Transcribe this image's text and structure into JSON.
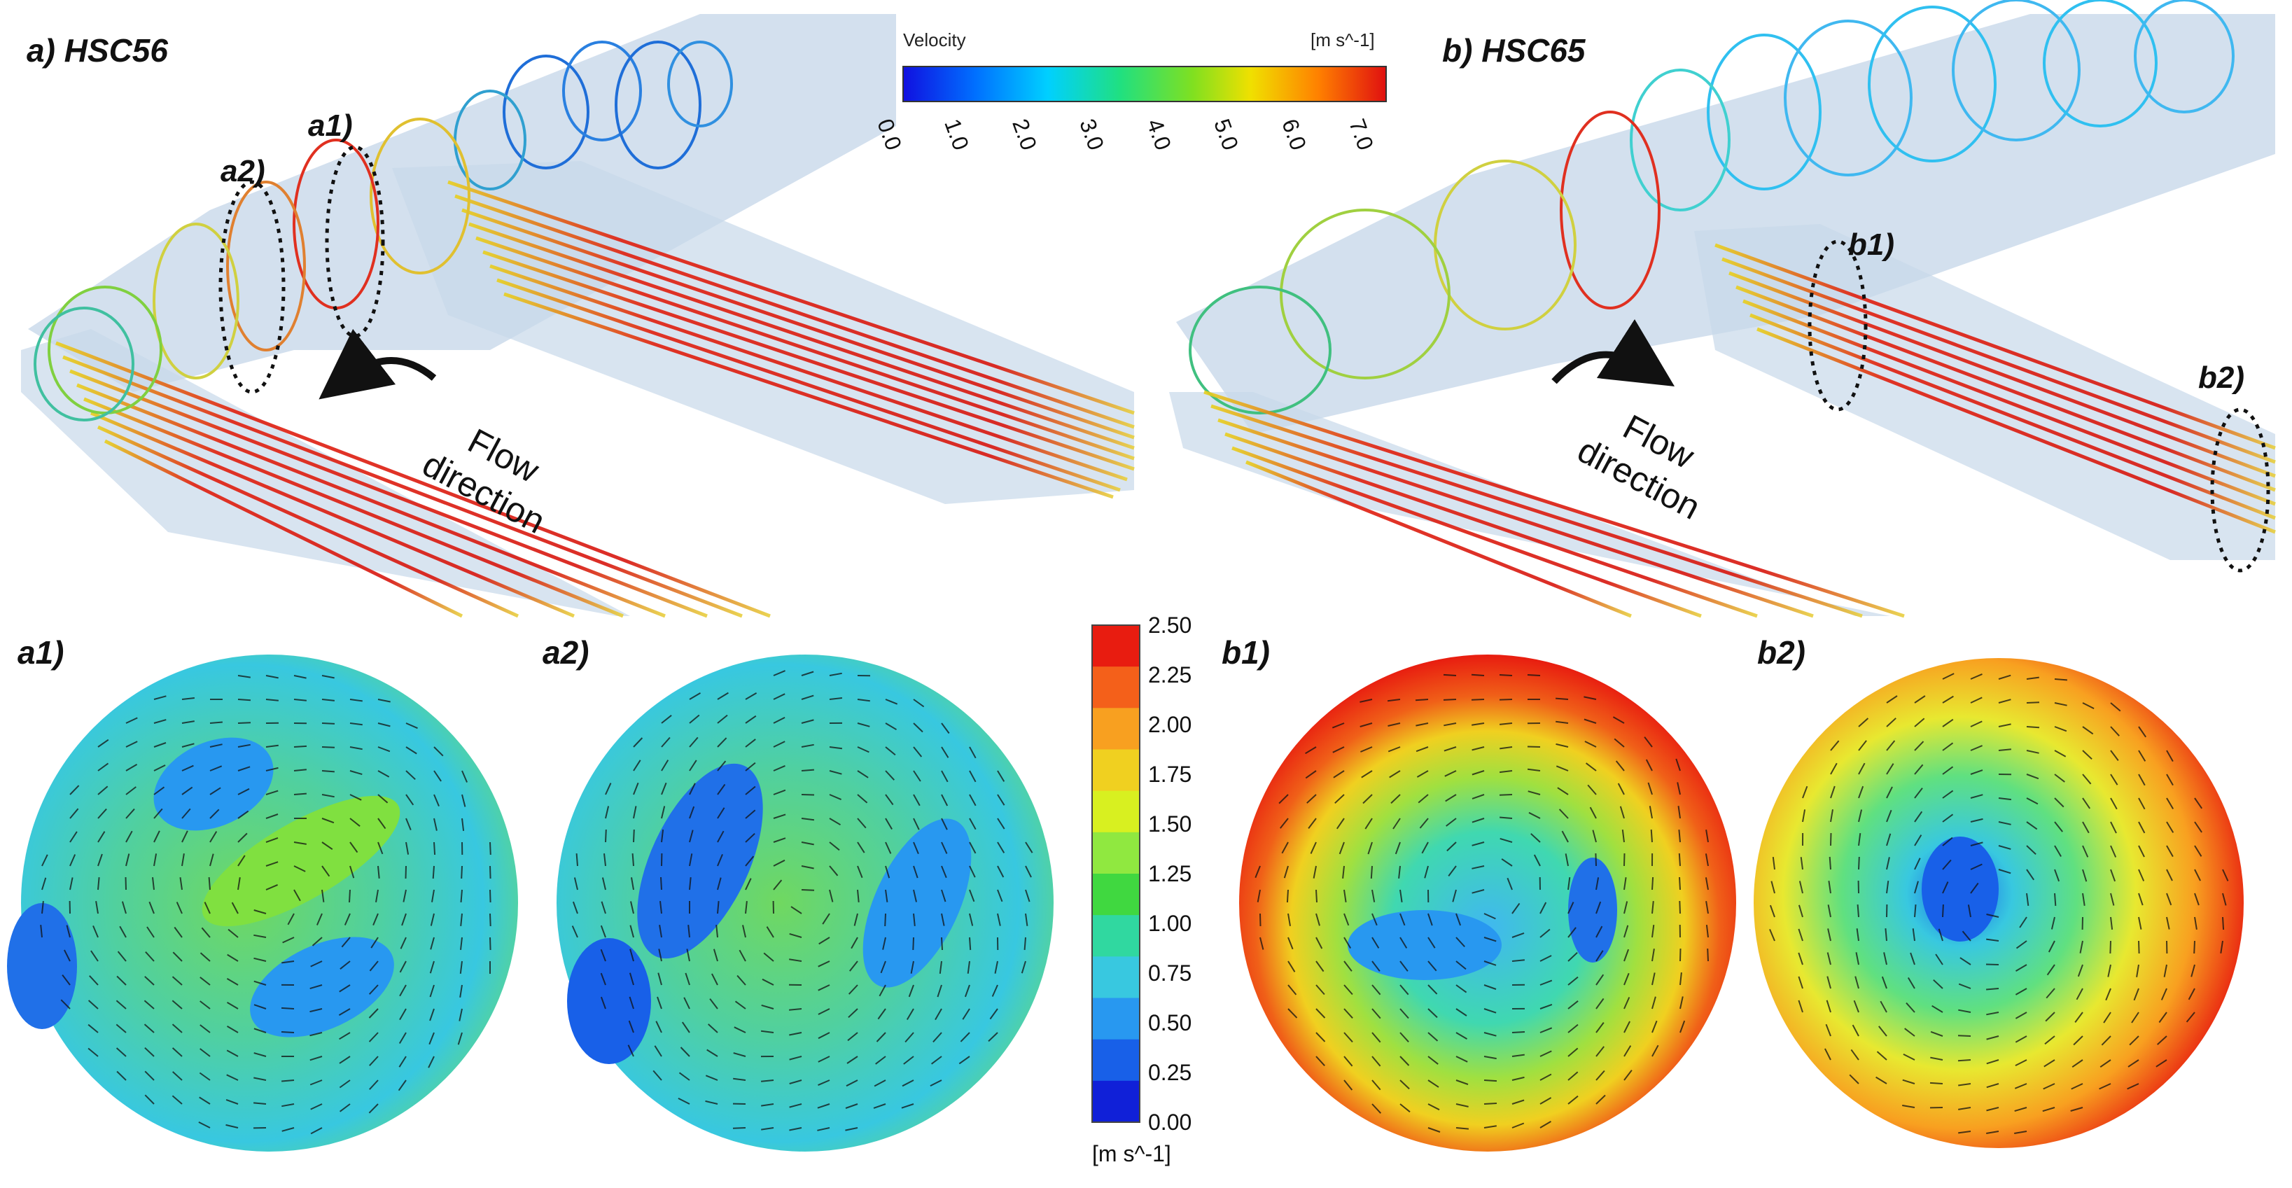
{
  "figure": {
    "panel_a_title": "a) HSC56",
    "panel_b_title": "b) HSC65",
    "flow_direction_line1": "Flow",
    "flow_direction_line2": "direction",
    "annotations": [
      "a1)",
      "a2)",
      "b1)",
      "b2)"
    ]
  },
  "velocity_colorbar": {
    "title": "Velocity",
    "unit": "[m s^-1]",
    "ticks": [
      "0.0",
      "1.0",
      "2.0",
      "3.0",
      "4.0",
      "5.0",
      "6.0",
      "7.0"
    ],
    "range": [
      0,
      7
    ],
    "colors": [
      "#1010e0",
      "#00a0ff",
      "#00e0c0",
      "#40e040",
      "#e0e000",
      "#ff9000",
      "#e01010"
    ]
  },
  "cross_sections": [
    {
      "label": "a1)"
    },
    {
      "label": "a2)"
    },
    {
      "label": "b1)"
    },
    {
      "label": "b2)"
    }
  ],
  "contour_colorbar": {
    "unit": "[m s^-1]",
    "ticks": [
      "2.50",
      "2.25",
      "2.00",
      "1.75",
      "1.50",
      "1.25",
      "1.00",
      "0.75",
      "0.50",
      "0.25",
      "0.00"
    ],
    "range": [
      0,
      2.5
    ],
    "colors": [
      "#e81c10",
      "#f4601a",
      "#f8a020",
      "#f0d020",
      "#d8f020",
      "#90e840",
      "#40d840",
      "#30d8a0",
      "#38c8e0",
      "#2898f0",
      "#1860e8",
      "#1020d8"
    ]
  }
}
